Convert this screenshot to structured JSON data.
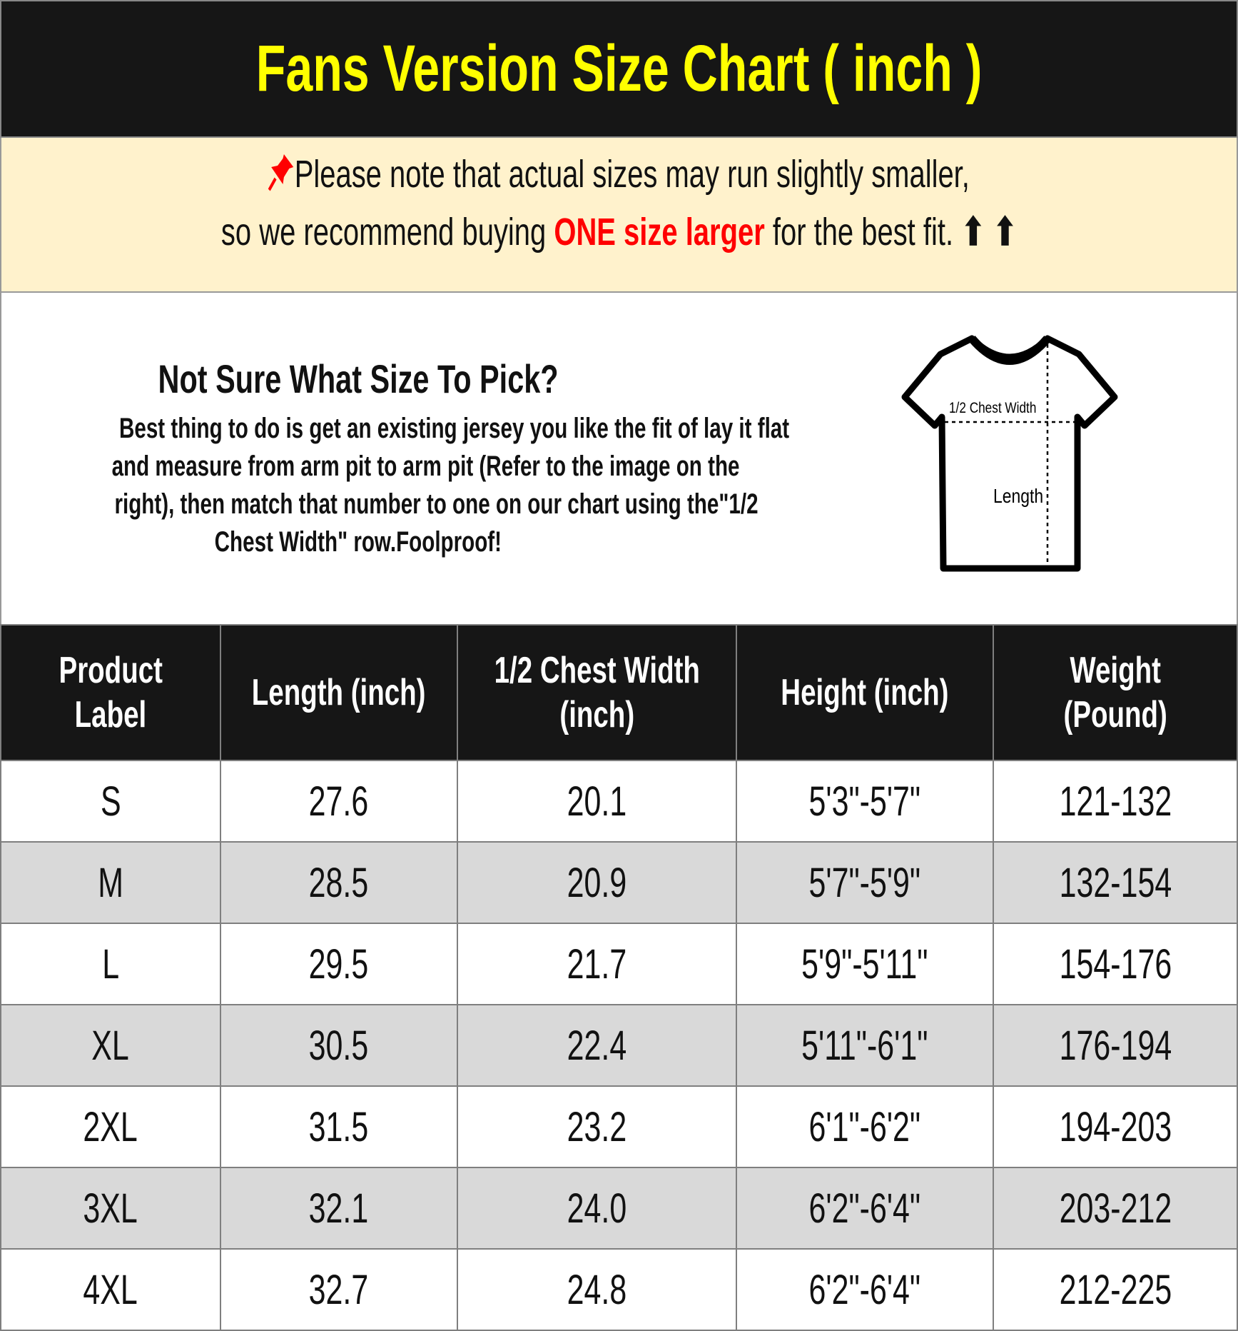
{
  "title": "Fans Version Size Chart ( inch )",
  "note": {
    "icon": "pushpin-icon",
    "line1": "Please note that actual sizes may run slightly smaller,",
    "line2_pre": "so we recommend buying ",
    "line2_highlight": "ONE size larger",
    "line2_post": " for the best fit. ",
    "arrows": "⬆ ⬆",
    "highlight_color": "#ff0000"
  },
  "info": {
    "heading": "Not Sure What Size To Pick?",
    "lines": [
      "Best thing to do is get an existing jersey you like the fit of lay it flat",
      "and measure from arm pit to arm pit (Refer to the image on the",
      "right), then match that number to one on our chart using the\"1/2",
      "Chest Width\" row.Foolproof!"
    ],
    "diagram": {
      "chest_label": "1/2 Chest Width",
      "length_label": "Length"
    }
  },
  "table": {
    "headers": [
      [
        "Product",
        "Label"
      ],
      [
        "Length (inch)"
      ],
      [
        "1/2 Chest Width",
        "(inch)"
      ],
      [
        "Height (inch)"
      ],
      [
        "Weight",
        "(Pound)"
      ]
    ],
    "rows": [
      [
        "S",
        "27.6",
        "20.1",
        "5'3\"-5'7\"",
        "121-132"
      ],
      [
        "M",
        "28.5",
        "20.9",
        "5'7\"-5'9\"",
        "132-154"
      ],
      [
        "L",
        "29.5",
        "21.7",
        "5'9\"-5'11\"",
        "154-176"
      ],
      [
        "XL",
        "30.5",
        "22.4",
        "5'11\"-6'1\"",
        "176-194"
      ],
      [
        "2XL",
        "31.5",
        "23.2",
        "6'1\"-6'2\"",
        "194-203"
      ],
      [
        "3XL",
        "32.1",
        "24.0",
        "6'2\"-6'4\"",
        "203-212"
      ],
      [
        "4XL",
        "32.7",
        "24.8",
        "6'2\"-6'4\"",
        "212-225"
      ]
    ]
  }
}
